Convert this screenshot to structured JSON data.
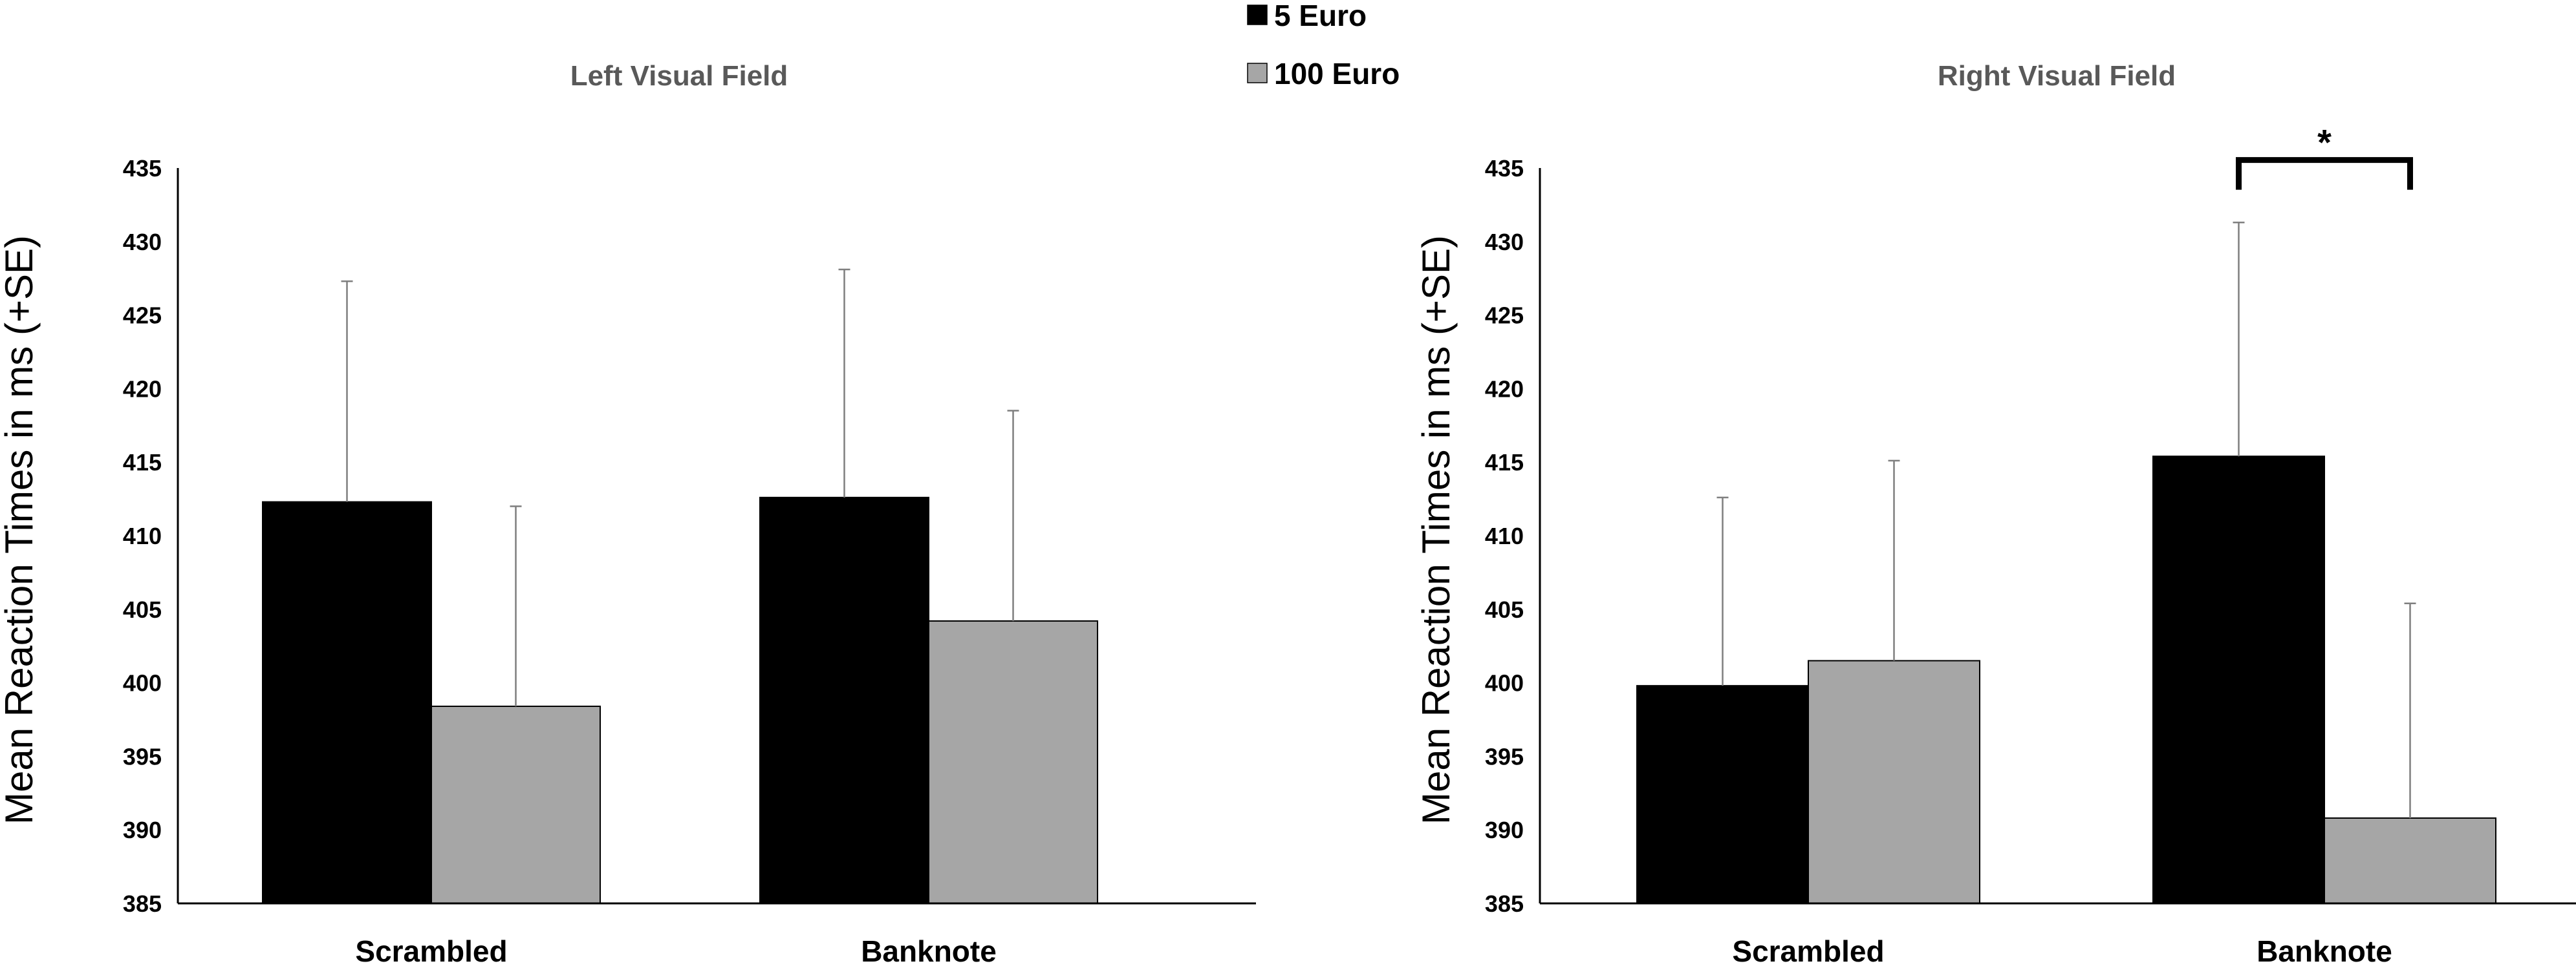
{
  "colors": {
    "5 Euro": "#000000",
    "100 Euro": "#a6a6a6",
    "error_bar": "#7f7f7f",
    "axis": "#000000"
  },
  "legend": {
    "items": [
      {
        "label": "5 Euro",
        "color": "#000000"
      },
      {
        "label": "100 Euro",
        "color": "#a6a6a6"
      }
    ]
  },
  "chart_data": [
    {
      "type": "bar",
      "title": "Left Visual Field",
      "ylabel": "Mean Reaction Times in ms (+SE)",
      "xlabel": "",
      "categories": [
        "Scrambled",
        "Banknote"
      ],
      "ylim": [
        385,
        435
      ],
      "yticks": [
        385,
        390,
        395,
        400,
        405,
        410,
        415,
        420,
        425,
        430,
        435
      ],
      "series": [
        {
          "name": "5 Euro",
          "values": [
            412.3,
            412.6
          ],
          "errors": [
            15.0,
            15.5
          ]
        },
        {
          "name": "100 Euro",
          "values": [
            398.4,
            404.2
          ],
          "errors": [
            13.6,
            14.3
          ]
        }
      ],
      "annotations": []
    },
    {
      "type": "bar",
      "title": "Right Visual Field",
      "ylabel": "Mean Reaction Times in ms (+SE)",
      "xlabel": "",
      "categories": [
        "Scrambled",
        "Banknote"
      ],
      "ylim": [
        385,
        435
      ],
      "yticks": [
        385,
        390,
        395,
        400,
        405,
        410,
        415,
        420,
        425,
        430,
        435
      ],
      "series": [
        {
          "name": "5 Euro",
          "values": [
            399.8,
            415.4
          ],
          "errors": [
            12.8,
            15.9
          ]
        },
        {
          "name": "100 Euro",
          "values": [
            401.5,
            390.8
          ],
          "errors": [
            13.6,
            14.6
          ]
        }
      ],
      "annotations": [
        {
          "text": "*",
          "category": "Banknote",
          "bracket_value": 435.5
        }
      ]
    }
  ]
}
